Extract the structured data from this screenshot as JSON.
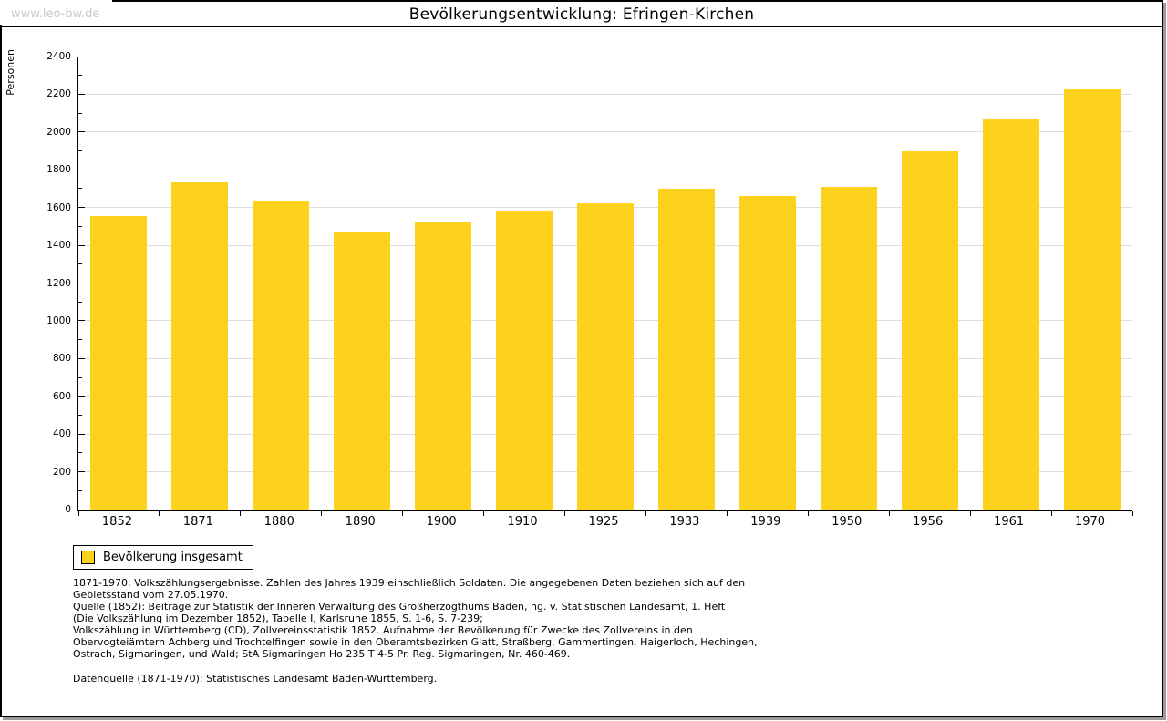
{
  "watermark": "www.leo-bw.de",
  "header": {
    "title": "Bevölkerungsentwicklung: Efringen-Kirchen"
  },
  "chart_data": {
    "type": "bar",
    "title": "Bevölkerungsentwicklung: Efringen-Kirchen",
    "ylabel": "Personen",
    "xlabel": "",
    "categories": [
      "1852",
      "1871",
      "1880",
      "1890",
      "1900",
      "1910",
      "1925",
      "1933",
      "1939",
      "1950",
      "1956",
      "1961",
      "1970"
    ],
    "values": [
      1553,
      1735,
      1639,
      1471,
      1521,
      1578,
      1625,
      1702,
      1660,
      1709,
      1900,
      2068,
      2228
    ],
    "series_name": "Bevölkerung insgesamt",
    "ylim": [
      0,
      2400
    ],
    "ytick_step": 200,
    "minor_tick_step": 100,
    "grid": true,
    "legend_position": "bottom-left",
    "colors": {
      "bar": "#fcd21c",
      "grid": "#dcdcdc",
      "axis": "#000000",
      "watermark": "#c9c9c9"
    }
  },
  "legend": {
    "label": "Bevölkerung insgesamt"
  },
  "footer": {
    "lines": [
      "1871-1970: Volkszählungsergebnisse. Zahlen des Jahres 1939 einschließlich Soldaten. Die angegebenen Daten beziehen sich auf den",
      "Gebietsstand vom 27.05.1970.",
      "Quelle (1852): Beiträge zur Statistik der Inneren Verwaltung des Großherzogthums Baden, hg. v. Statistischen Landesamt, 1. Heft",
      "(Die Volkszählung im Dezember 1852), Tabelle I, Karlsruhe 1855, S. 1-6, S. 7-239;",
      "Volkszählung in Württemberg (CD), Zollvereinsstatistik 1852. Aufnahme der Bevölkerung für Zwecke des Zollvereins in den",
      "Obervogteiämtern Achberg und Trochtelfingen sowie in den Oberamtsbezirken Glatt, Straßberg, Gammertingen, Haigerloch, Hechingen,",
      "Ostrach, Sigmaringen, und Wald; StA Sigmaringen Ho 235 T 4-5 Pr. Reg. Sigmaringen, Nr. 460-469."
    ],
    "datasource": "Datenquelle (1871-1970): Statistisches Landesamt Baden-Württemberg."
  }
}
